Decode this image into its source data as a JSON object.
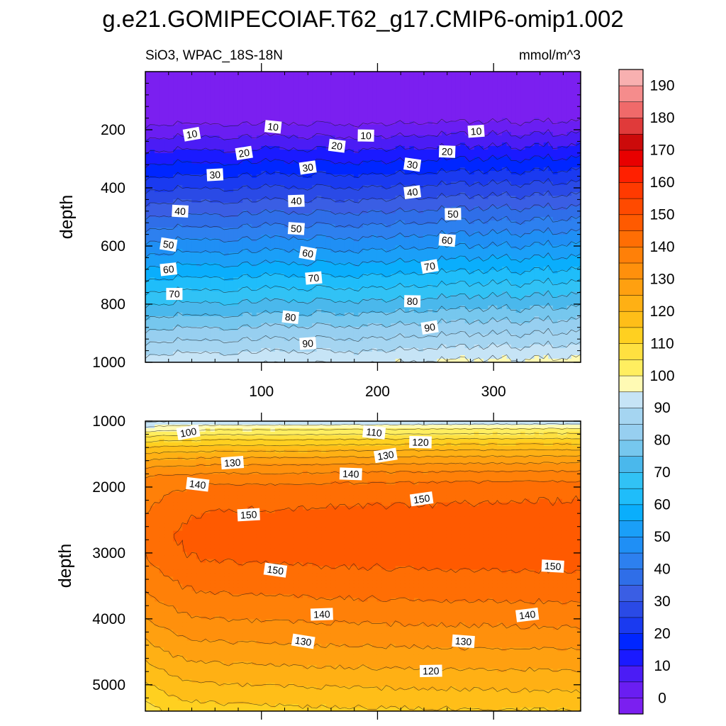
{
  "chart_data": {
    "type": "contour",
    "title": "g.e21.GOMIPECOIAF.T62_g17.CMIP6-omip1.002",
    "subtitle_left": "SiO3, WPAC_18S-18N",
    "subtitle_right": "mmol/m^3",
    "colorbar": {
      "levels": [
        0,
        5,
        10,
        15,
        20,
        25,
        30,
        35,
        40,
        45,
        50,
        55,
        60,
        65,
        70,
        75,
        80,
        85,
        90,
        95,
        100,
        105,
        110,
        115,
        120,
        125,
        130,
        135,
        140,
        145,
        150,
        155,
        160,
        165,
        170,
        175,
        180,
        185,
        190,
        195
      ],
      "tick_labels": [
        "0",
        "10",
        "20",
        "30",
        "40",
        "50",
        "60",
        "70",
        "80",
        "90",
        "100",
        "110",
        "120",
        "130",
        "140",
        "150",
        "160",
        "170",
        "180",
        "190"
      ],
      "colors": [
        "#7b1ff0",
        "#6a1ef2",
        "#4b1cf5",
        "#1a1aff",
        "#0026ff",
        "#1a3af0",
        "#2a4ae6",
        "#3a5ee4",
        "#2f6ee8",
        "#2d80ef",
        "#1f8ff5",
        "#1a9ff8",
        "#0aaefc",
        "#1fbdfa",
        "#31c2f5",
        "#4ab8ec",
        "#76c7ee",
        "#97cff0",
        "#a5d5f1",
        "#c6e4f6",
        "#fffab4",
        "#ffee60",
        "#ffe040",
        "#ffd020",
        "#ffbe18",
        "#ffb014",
        "#ffa010",
        "#ff900c",
        "#ff8008",
        "#ff6e04",
        "#ff5a00",
        "#ff4a00",
        "#ff3a00",
        "#ff2000",
        "#e80000",
        "#cc0a0a",
        "#e03a3a",
        "#f06a6a",
        "#f58c8c",
        "#f8b0b0"
      ]
    },
    "panels": [
      {
        "name": "upper",
        "ylabel": "depth",
        "ylim": [
          0,
          1000
        ],
        "xlim": [
          0,
          375
        ],
        "yticks": [
          200,
          400,
          600,
          800,
          1000
        ],
        "xticks": [
          100,
          200,
          300
        ],
        "contour_labels": [
          {
            "text": "10",
            "x": 40,
            "y": 215
          },
          {
            "text": "10",
            "x": 110,
            "y": 190
          },
          {
            "text": "10",
            "x": 190,
            "y": 220
          },
          {
            "text": "10",
            "x": 285,
            "y": 205
          },
          {
            "text": "20",
            "x": 85,
            "y": 280
          },
          {
            "text": "20",
            "x": 165,
            "y": 255
          },
          {
            "text": "20",
            "x": 260,
            "y": 275
          },
          {
            "text": "30",
            "x": 60,
            "y": 355
          },
          {
            "text": "30",
            "x": 140,
            "y": 330
          },
          {
            "text": "30",
            "x": 230,
            "y": 320
          },
          {
            "text": "40",
            "x": 30,
            "y": 480
          },
          {
            "text": "40",
            "x": 130,
            "y": 445
          },
          {
            "text": "40",
            "x": 230,
            "y": 415
          },
          {
            "text": "50",
            "x": 20,
            "y": 595
          },
          {
            "text": "50",
            "x": 130,
            "y": 540
          },
          {
            "text": "50",
            "x": 265,
            "y": 490
          },
          {
            "text": "60",
            "x": 20,
            "y": 680
          },
          {
            "text": "60",
            "x": 140,
            "y": 625
          },
          {
            "text": "60",
            "x": 260,
            "y": 580
          },
          {
            "text": "70",
            "x": 25,
            "y": 765
          },
          {
            "text": "70",
            "x": 145,
            "y": 710
          },
          {
            "text": "70",
            "x": 245,
            "y": 670
          },
          {
            "text": "80",
            "x": 125,
            "y": 845
          },
          {
            "text": "80",
            "x": 230,
            "y": 790
          },
          {
            "text": "90",
            "x": 140,
            "y": 935
          },
          {
            "text": "90",
            "x": 245,
            "y": 880
          }
        ]
      },
      {
        "name": "lower",
        "ylabel": "depth",
        "ylim": [
          1000,
          5400
        ],
        "xlim": [
          0,
          375
        ],
        "yticks": [
          1000,
          2000,
          3000,
          4000,
          5000
        ],
        "xticks": [
          100,
          200,
          300
        ],
        "contour_labels": [
          {
            "text": "100",
            "x": 37,
            "y": 1170
          },
          {
            "text": "110",
            "x": 197,
            "y": 1170
          },
          {
            "text": "120",
            "x": 237,
            "y": 1320
          },
          {
            "text": "130",
            "x": 75,
            "y": 1630
          },
          {
            "text": "130",
            "x": 207,
            "y": 1520
          },
          {
            "text": "140",
            "x": 45,
            "y": 1960
          },
          {
            "text": "140",
            "x": 177,
            "y": 1800
          },
          {
            "text": "150",
            "x": 89,
            "y": 2420
          },
          {
            "text": "150",
            "x": 238,
            "y": 2180
          },
          {
            "text": "150",
            "x": 112,
            "y": 3260
          },
          {
            "text": "150",
            "x": 351,
            "y": 3200
          },
          {
            "text": "140",
            "x": 152,
            "y": 3930
          },
          {
            "text": "140",
            "x": 329,
            "y": 3940
          },
          {
            "text": "130",
            "x": 136,
            "y": 4340
          },
          {
            "text": "130",
            "x": 274,
            "y": 4340
          },
          {
            "text": "120",
            "x": 246,
            "y": 4790
          }
        ]
      }
    ]
  }
}
